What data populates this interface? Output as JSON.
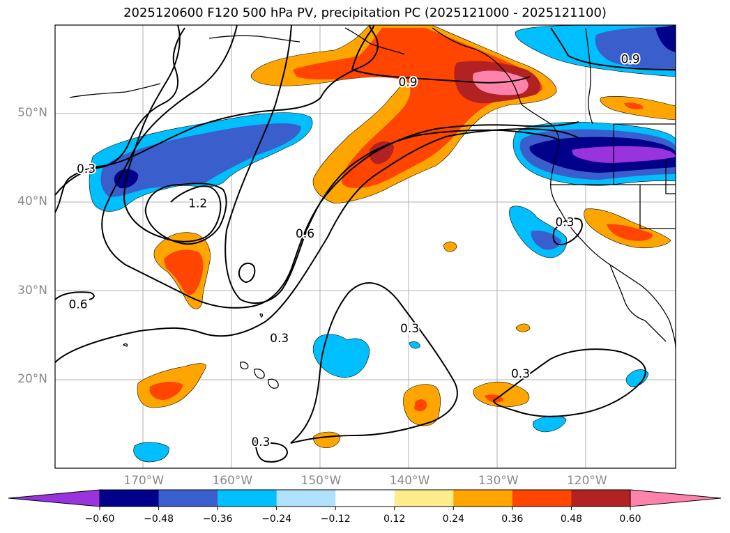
{
  "title": "2025120600 F120 500 hPa PV, precipitation PC (2025121000 - 2025121100)",
  "lat_labels": [
    {
      "label": "50°N",
      "lat": 50
    },
    {
      "label": "40°N",
      "lat": 40
    },
    {
      "label": "30°N",
      "lat": 30
    },
    {
      "label": "20°N",
      "lat": 20
    }
  ],
  "lon_labels": [
    {
      "label": "170°W",
      "lon": -170
    },
    {
      "label": "160°W",
      "lon": -160
    },
    {
      "label": "150°W",
      "lon": -150
    },
    {
      "label": "140°W",
      "lon": -140
    },
    {
      "label": "130°W",
      "lon": -130
    },
    {
      "label": "120°W",
      "lon": -120
    }
  ],
  "colorbar": {
    "ticks": [
      "−0.60",
      "−0.48",
      "−0.36",
      "−0.24",
      "−0.12",
      "0.12",
      "0.24",
      "0.36",
      "0.48",
      "0.60"
    ],
    "colors": [
      "#9933dd",
      "#00008b",
      "#3a5fcd",
      "#00bfff",
      "#b0e2ff",
      "#ffffff",
      "#ffec8b",
      "#ffa500",
      "#ff4500",
      "#b22222",
      "#ff82ab"
    ]
  },
  "contour_labels": [
    {
      "text": "0.3",
      "lon": -176.5,
      "lat": 43.8
    },
    {
      "text": "1.2",
      "lon": -163.9,
      "lat": 39.9
    },
    {
      "text": "0.6",
      "lon": -151.8,
      "lat": 36.5
    },
    {
      "text": "0.9",
      "lon": -140.2,
      "lat": 53.6
    },
    {
      "text": "0.9",
      "lon": -115.1,
      "lat": 56.2
    },
    {
      "text": "0.3",
      "lon": -122.5,
      "lat": 37.8
    },
    {
      "text": "0.6",
      "lon": -177.4,
      "lat": 28.5
    },
    {
      "text": "0.3",
      "lon": -154.7,
      "lat": 24.7
    },
    {
      "text": "0.3",
      "lon": -140.0,
      "lat": 25.8
    },
    {
      "text": "0.3",
      "lon": -156.8,
      "lat": 13.0
    },
    {
      "text": "0.3",
      "lon": -127.5,
      "lat": 20.7
    }
  ]
}
